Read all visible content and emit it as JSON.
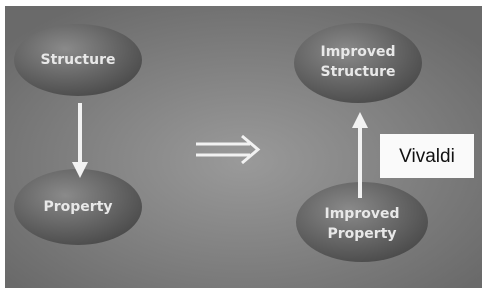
{
  "nodes": [
    {
      "lines": [
        "Structure"
      ]
    },
    {
      "lines": [
        "Property"
      ]
    },
    {
      "lines": [
        "Improved",
        "Structure"
      ]
    },
    {
      "lines": [
        "Improved",
        "Property"
      ]
    }
  ],
  "label": "Vivaldi"
}
